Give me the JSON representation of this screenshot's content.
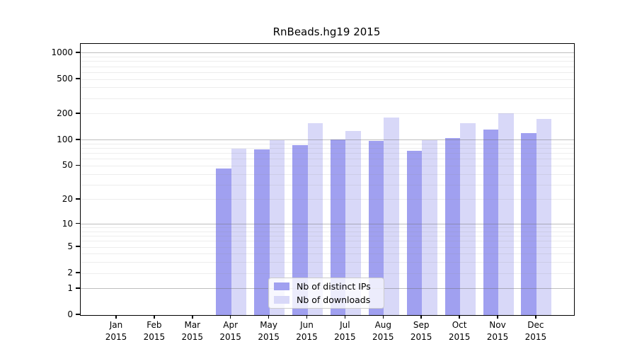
{
  "chart_data": {
    "type": "bar",
    "title": "RnBeads.hg19 2015",
    "y_axis": {
      "scale": "log1p",
      "tick_values": [
        0,
        1,
        2,
        5,
        10,
        20,
        50,
        100,
        200,
        500,
        1000
      ],
      "tick_labels": [
        "0",
        "1",
        "2",
        "5",
        "10",
        "20",
        "50",
        "100",
        "200",
        "500",
        "1000"
      ],
      "major_gridlines": [
        1,
        10,
        100,
        1000
      ],
      "minor_gridlines": [
        2,
        3,
        4,
        5,
        6,
        7,
        8,
        9,
        20,
        30,
        40,
        50,
        60,
        70,
        80,
        90,
        200,
        300,
        400,
        500,
        600,
        700,
        800,
        900
      ],
      "ylim": [
        0,
        1275
      ]
    },
    "x_axis": {
      "months": [
        "Jan",
        "Feb",
        "Mar",
        "Apr",
        "May",
        "Jun",
        "Jul",
        "Aug",
        "Sep",
        "Oct",
        "Nov",
        "Dec"
      ],
      "year_label": "2015"
    },
    "series": [
      {
        "name": "Nb of distinct IPs",
        "color": "#a0a0f0",
        "values": [
          0,
          0,
          0,
          47,
          78,
          87,
          101,
          97,
          75,
          106,
          131,
          121
        ]
      },
      {
        "name": "Nb of downloads",
        "color": "#d8d8f8",
        "values": [
          0,
          0,
          0,
          80,
          99,
          157,
          127,
          181,
          100,
          156,
          202,
          175
        ]
      }
    ],
    "legend_position": "bottom-center",
    "grid": "minor-and-major-horizontal"
  }
}
